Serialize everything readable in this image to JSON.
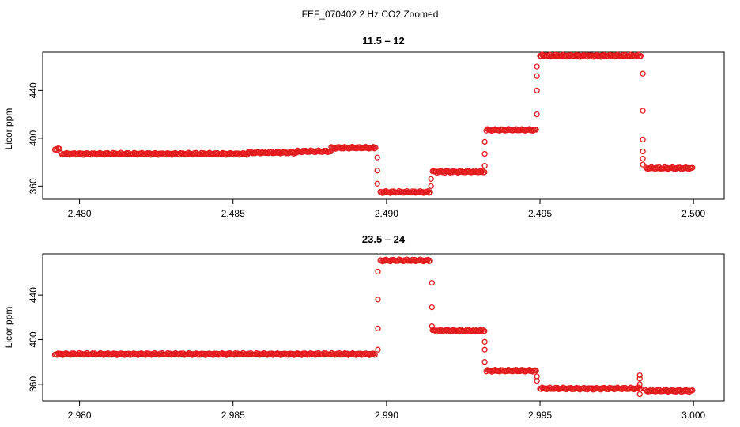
{
  "figure": {
    "title": "FEF_070402 2 Hz CO2 Zoomed"
  },
  "colors": {
    "points": "#ee1111",
    "axis": "#000000",
    "background": "#ffffff"
  },
  "chart_data": [
    {
      "type": "scatter",
      "title": "11.5 – 12",
      "xlabel": "",
      "ylabel": "Licor ppm",
      "xlim": [
        2.4788,
        2.501
      ],
      "ylim": [
        349,
        472
      ],
      "xticks": [
        2.48,
        2.485,
        2.49,
        2.495,
        2.5
      ],
      "xtick_labels": [
        "2.480",
        "2.485",
        "2.490",
        "2.495",
        "2.500"
      ],
      "yticks": [
        360,
        400,
        440
      ],
      "ytick_labels": [
        "360",
        "400",
        "440"
      ],
      "marker": "open-circle",
      "grid": false,
      "segments": [
        {
          "x_start": 2.4792,
          "x_end": 2.47935,
          "y": 391
        },
        {
          "x_start": 2.4794,
          "x_end": 2.4855,
          "y": 387
        },
        {
          "x_start": 2.4855,
          "x_end": 2.4871,
          "y": 388
        },
        {
          "x_start": 2.4871,
          "x_end": 2.4882,
          "y": 389
        },
        {
          "x_start": 2.4882,
          "x_end": 2.48965,
          "y": 392
        },
        {
          "x_start": 2.4898,
          "x_end": 2.49145,
          "y": 355
        },
        {
          "x_start": 2.4915,
          "x_end": 2.4932,
          "y": 372
        },
        {
          "x_start": 2.49325,
          "x_end": 2.4949,
          "y": 407
        },
        {
          "x_start": 2.495,
          "x_end": 2.4983,
          "y": 469
        },
        {
          "x_start": 2.49845,
          "x_end": 2.5,
          "y": 375
        }
      ],
      "transitions": [
        {
          "x": 2.4897,
          "y": [
            384,
            373,
            362
          ]
        },
        {
          "x": 2.49145,
          "y": [
            360,
            366
          ]
        },
        {
          "x": 2.4932,
          "y": [
            377,
            387,
            397
          ]
        },
        {
          "x": 2.4949,
          "y": [
            420,
            440,
            452,
            460
          ]
        },
        {
          "x": 2.49835,
          "y": [
            454,
            423,
            399,
            389,
            383,
            378
          ]
        }
      ]
    },
    {
      "type": "scatter",
      "title": "23.5 – 24",
      "xlabel": "",
      "ylabel": "Licor ppm",
      "xlim": [
        2.9788,
        3.001
      ],
      "ylim": [
        345,
        477
      ],
      "xticks": [
        2.98,
        2.985,
        2.99,
        2.995,
        3.0
      ],
      "xtick_labels": [
        "2.980",
        "2.985",
        "2.990",
        "2.995",
        "3.000"
      ],
      "yticks": [
        360,
        400,
        440
      ],
      "ytick_labels": [
        "360",
        "400",
        "440"
      ],
      "marker": "open-circle",
      "grid": false,
      "segments": [
        {
          "x_start": 2.9792,
          "x_end": 2.98965,
          "y": 387
        },
        {
          "x_start": 2.9898,
          "x_end": 2.99145,
          "y": 471
        },
        {
          "x_start": 2.9915,
          "x_end": 2.9932,
          "y": 408
        },
        {
          "x_start": 2.99325,
          "x_end": 2.9949,
          "y": 372
        },
        {
          "x_start": 2.995,
          "x_end": 2.9983,
          "y": 356
        },
        {
          "x_start": 2.99845,
          "x_end": 3.0,
          "y": 354
        }
      ],
      "transitions": [
        {
          "x": 2.98972,
          "y": [
            391,
            410,
            436,
            461
          ]
        },
        {
          "x": 2.99148,
          "y": [
            451,
            429,
            412
          ]
        },
        {
          "x": 2.9932,
          "y": [
            398,
            391,
            380
          ]
        },
        {
          "x": 2.9949,
          "y": [
            363,
            367
          ]
        },
        {
          "x": 2.99825,
          "y": [
            368,
            365,
            360,
            351
          ]
        }
      ]
    }
  ]
}
